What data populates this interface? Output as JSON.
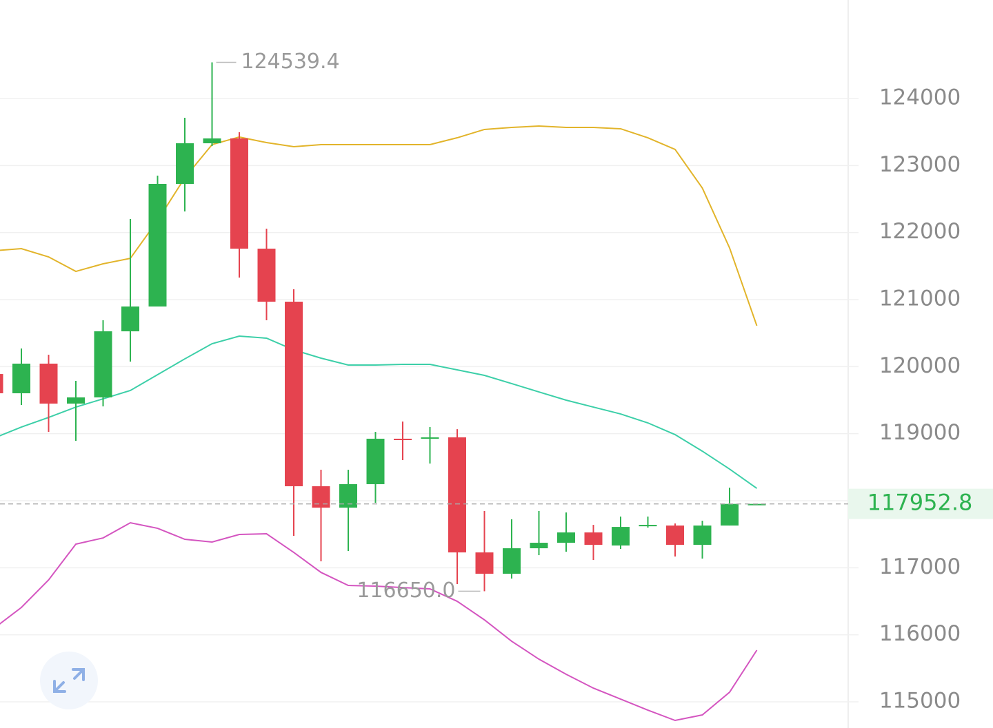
{
  "chart_data": {
    "type": "candlestick",
    "up_color": "#2db350",
    "down_color": "#e5434f",
    "open": [
      119890,
      119603,
      120045,
      119449,
      119541,
      120527,
      120897,
      122726,
      123332,
      123404,
      121760,
      120969,
      118216,
      117897,
      118247,
      118925,
      118925,
      118945,
      117229,
      116911,
      117291,
      117373,
      117527,
      117332,
      117619,
      117630,
      117342,
      117630,
      117952.8
    ],
    "high": [
      119950,
      120271,
      120178,
      119788,
      120692,
      122202,
      122849,
      123712,
      124539.4,
      123497,
      122058,
      121154,
      118462,
      118462,
      119027,
      119181,
      119099,
      119068,
      117846,
      117723,
      117846,
      117825,
      117640,
      117764,
      117764,
      117661,
      117702,
      118195,
      117952.8
    ],
    "low": [
      119550,
      119428,
      119027,
      118894,
      119407,
      120075,
      120897,
      122315,
      123291,
      121329,
      120692,
      117476,
      117096,
      117250,
      117969,
      118606,
      118555,
      116757,
      116650.0,
      116839,
      117188,
      117240,
      117116,
      117281,
      117599,
      117168,
      117137,
      117630,
      117952.8
    ],
    "close": [
      119603,
      120045,
      119449,
      119541,
      120527,
      120897,
      122726,
      123332,
      123404,
      121760,
      120969,
      118216,
      117897,
      118247,
      118925,
      118920,
      118945,
      117229,
      116911,
      117291,
      117373,
      117527,
      117342,
      117609,
      117640,
      117342,
      117630,
      117952.8,
      117952.8
    ],
    "bands": [
      {
        "color": "#e2b42a",
        "values": [
          121729,
          121760,
          121637,
          121421,
          121534,
          121616,
          122181,
          122818,
          123312,
          123425,
          123342,
          123281,
          123312,
          123312,
          123312,
          123312,
          123312,
          123414,
          123538,
          123568,
          123589,
          123568,
          123568,
          123548,
          123414,
          123240,
          122664,
          121771,
          120610
        ]
      },
      {
        "color": "#3ccfa8",
        "values": [
          118935,
          119099,
          119243,
          119397,
          119520,
          119644,
          119880,
          120116,
          120342,
          120455,
          120425,
          120250,
          120127,
          120024,
          120024,
          120034,
          120034,
          119952,
          119870,
          119747,
          119623,
          119500,
          119397,
          119294,
          119161,
          118986,
          118739,
          118472,
          118185
        ]
      },
      {
        "color": "#d455c0",
        "values": [
          116099,
          116408,
          116819,
          117353,
          117445,
          117671,
          117589,
          117425,
          117384,
          117497,
          117507,
          117229,
          116931,
          116736,
          116726,
          116705,
          116685,
          116500,
          116223,
          115904,
          115637,
          115411,
          115205,
          115041,
          114877,
          114723,
          114805,
          115144,
          115771
        ]
      }
    ],
    "high_label": {
      "value": 124539.4,
      "label": "124539.4"
    },
    "low_label": {
      "value": 116650.0,
      "label": "116650.0"
    },
    "last_price": {
      "value": 117952.8,
      "label": "117952.8"
    },
    "ylim": [
      114610,
      125469
    ],
    "yticks": [
      115000,
      116000,
      117000,
      118000,
      119000,
      120000,
      121000,
      122000,
      123000,
      124000
    ],
    "grid": true
  }
}
